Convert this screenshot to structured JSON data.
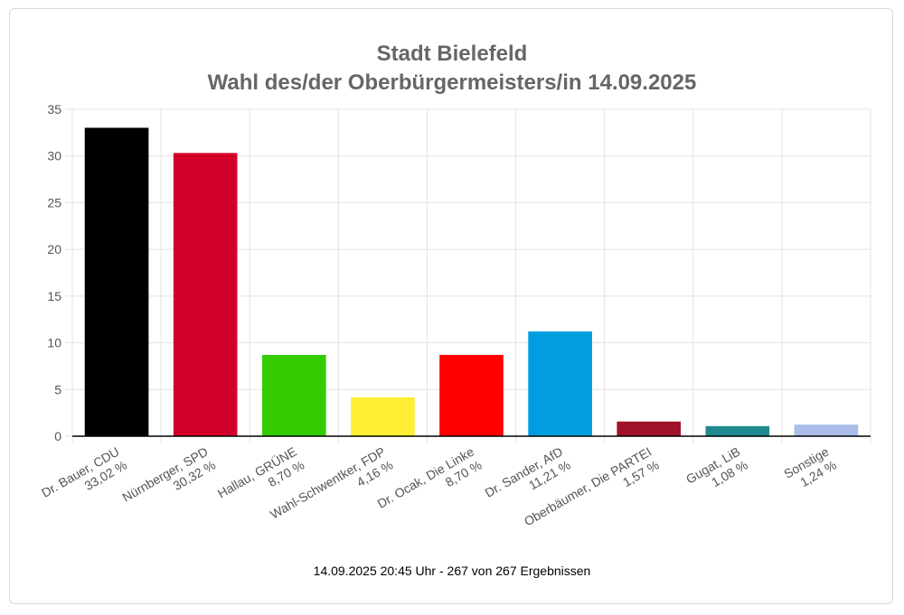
{
  "chart_data": {
    "type": "bar",
    "title_lines": [
      "Stadt Bielefeld",
      "Wahl des/der Oberbürgermeisters/in 14.09.2025"
    ],
    "categories": [
      {
        "name": "Dr. Bauer, CDU",
        "pct": "33,02 %"
      },
      {
        "name": "Nürnberger, SPD",
        "pct": "30,32 %"
      },
      {
        "name": "Hallau, GRÜNE",
        "pct": "8,70 %"
      },
      {
        "name": "Wahl-Schwentker, FDP",
        "pct": "4,16 %"
      },
      {
        "name": "Dr. Ocak, Die Linke",
        "pct": "8,70 %"
      },
      {
        "name": "Dr. Sander, AfD",
        "pct": "11,21 %"
      },
      {
        "name": "Oberbäumer, Die PARTEI",
        "pct": "1,57 %"
      },
      {
        "name": "Gugat, LiB",
        "pct": "1,08 %"
      },
      {
        "name": "Sonstige",
        "pct": "1,24 %"
      }
    ],
    "values": [
      33.02,
      30.32,
      8.7,
      4.16,
      8.7,
      11.21,
      1.57,
      1.08,
      1.24
    ],
    "colors": [
      "#000000",
      "#d3002a",
      "#33cc00",
      "#ffee33",
      "#ff0000",
      "#009ee0",
      "#a0112a",
      "#218a8f",
      "#a9bde8"
    ],
    "ylim": [
      0,
      35
    ],
    "yticks": [
      0,
      5,
      10,
      15,
      20,
      25,
      30,
      35
    ],
    "grid": true,
    "legend": "none"
  },
  "footer": "14.09.2025 20:45 Uhr - 267 von 267 Ergebnissen"
}
